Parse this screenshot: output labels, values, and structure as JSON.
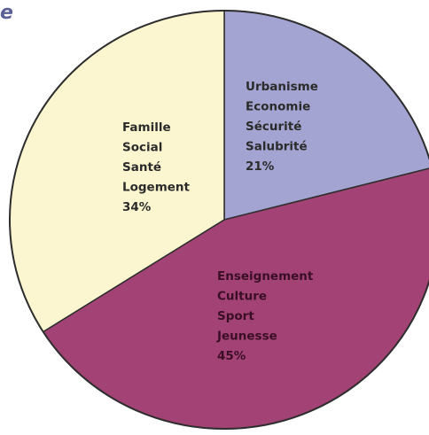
{
  "corner_fragment": "e",
  "chart_data": {
    "type": "pie",
    "title": "",
    "start_angle_deg": 0,
    "direction": "clockwise",
    "border_color": "#2e2e2e",
    "slices": [
      {
        "labels": [
          "Urbanisme",
          "Economie",
          "Sécurité",
          "Salubrité"
        ],
        "percent_label": "21%",
        "value": 21,
        "color": "#a3a4d2",
        "text_color": "#2b2b2b"
      },
      {
        "labels": [
          "Enseignement",
          "Culture",
          "Sport",
          "Jeunesse"
        ],
        "percent_label": "45%",
        "value": 45,
        "color": "#a34274",
        "text_color": "#3a0f26"
      },
      {
        "labels": [
          "Famille",
          "Social",
          "Santé",
          "Logement"
        ],
        "percent_label": "34%",
        "value": 34,
        "color": "#fbf6cf",
        "text_color": "#2b2b2b"
      }
    ]
  }
}
